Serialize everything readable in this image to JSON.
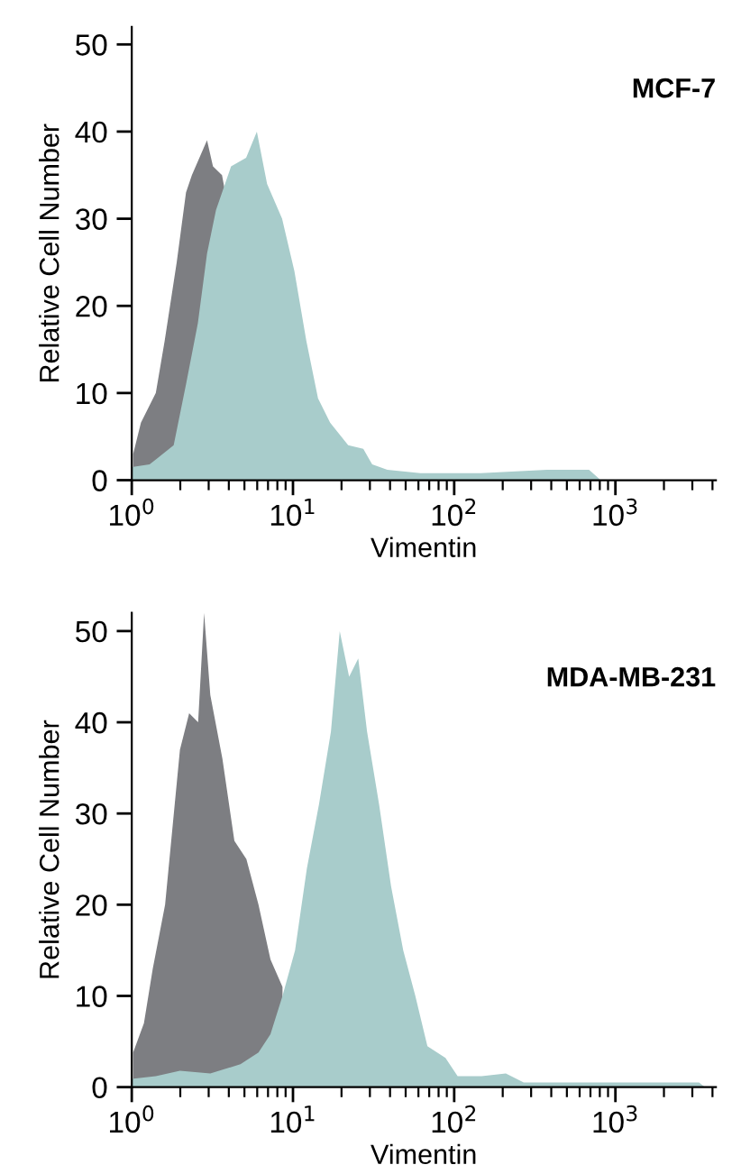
{
  "chart_data": [
    {
      "type": "area",
      "title": "MCF-7",
      "xlabel": "Vimentin",
      "ylabel": "Relative Cell Number",
      "log": "x",
      "xlim": [
        1,
        4200
      ],
      "ylim": [
        0,
        52
      ],
      "xticks": [
        {
          "value": 1,
          "label": "10$^{0}$"
        },
        {
          "value": 10,
          "label": "10$^{1}$"
        },
        {
          "value": 100,
          "label": "10$^{2}$"
        },
        {
          "value": 1000,
          "label": "10$^{3}$"
        }
      ],
      "yticks": [
        0,
        10,
        20,
        30,
        40,
        50
      ],
      "grid": false,
      "legend": false,
      "series": [
        {
          "color": "#7d7e82",
          "x": [
            1.02,
            1.14,
            1.41,
            1.6,
            1.9,
            2.17,
            2.36,
            2.93,
            3.19,
            3.63,
            3.8
          ],
          "values": [
            3,
            6.6,
            10,
            16,
            25,
            33,
            35,
            39,
            36,
            35,
            33
          ]
        },
        {
          "color": "#a8cccb",
          "x": [
            1.0,
            1.29,
            1.82,
            2.17,
            2.57,
            2.93,
            3.33,
            4.13,
            5.12,
            5.97,
            6.91,
            8.56,
            10.2,
            12.1,
            14.3,
            17.0,
            22.0,
            27.3,
            31.0,
            38.5,
            61.7,
            146,
            376,
            686,
            811
          ],
          "values": [
            1.5,
            1.8,
            4,
            11,
            18,
            26,
            31,
            36,
            37,
            40,
            34,
            30,
            24,
            16,
            9.4,
            6.6,
            4,
            3.6,
            1.8,
            1.2,
            0.8,
            0.8,
            1.2,
            1.2,
            0
          ]
        }
      ]
    },
    {
      "type": "area",
      "title": "MDA-MB-231",
      "xlabel": "Vimentin",
      "ylabel": "Relative Cell Number",
      "log": "x",
      "xlim": [
        1,
        4200
      ],
      "ylim": [
        0,
        52
      ],
      "xticks": [
        {
          "value": 1,
          "label": "10$^{0}$"
        },
        {
          "value": 10,
          "label": "10$^{1}$"
        },
        {
          "value": 100,
          "label": "10$^{2}$"
        },
        {
          "value": 1000,
          "label": "10$^{3}$"
        }
      ],
      "yticks": [
        0,
        10,
        20,
        30,
        40,
        50
      ],
      "grid": false,
      "legend": false,
      "series": [
        {
          "color": "#7d7e82",
          "x": [
            1.02,
            1.19,
            1.35,
            1.61,
            1.99,
            2.27,
            2.58,
            2.81,
            3.07,
            3.65,
            4.33,
            5.14,
            6.11,
            7.25,
            8.61
          ],
          "values": [
            3.8,
            7,
            13,
            20,
            37,
            41,
            40,
            52,
            43,
            36,
            27,
            25,
            20,
            14,
            11
          ]
        },
        {
          "color": "#a8cccb",
          "x": [
            1.0,
            1.41,
            1.99,
            3.07,
            4.72,
            6.11,
            7.25,
            8.61,
            10.3,
            12.2,
            14.5,
            17.2,
            19.5,
            22.3,
            25.4,
            28.8,
            34.2,
            40.6,
            48.3,
            57.4,
            68.2,
            88.3,
            105,
            148,
            209,
            270,
            417,
            982,
            3300,
            3600
          ],
          "values": [
            0.9,
            1.2,
            1.8,
            1.5,
            2.5,
            3.8,
            5.8,
            10,
            15,
            24,
            31,
            39,
            50,
            45,
            47,
            39,
            31,
            22,
            15,
            10,
            4.5,
            3.2,
            1.2,
            1.2,
            1.5,
            0.5,
            0.5,
            0.5,
            0.5,
            0
          ]
        }
      ]
    }
  ]
}
